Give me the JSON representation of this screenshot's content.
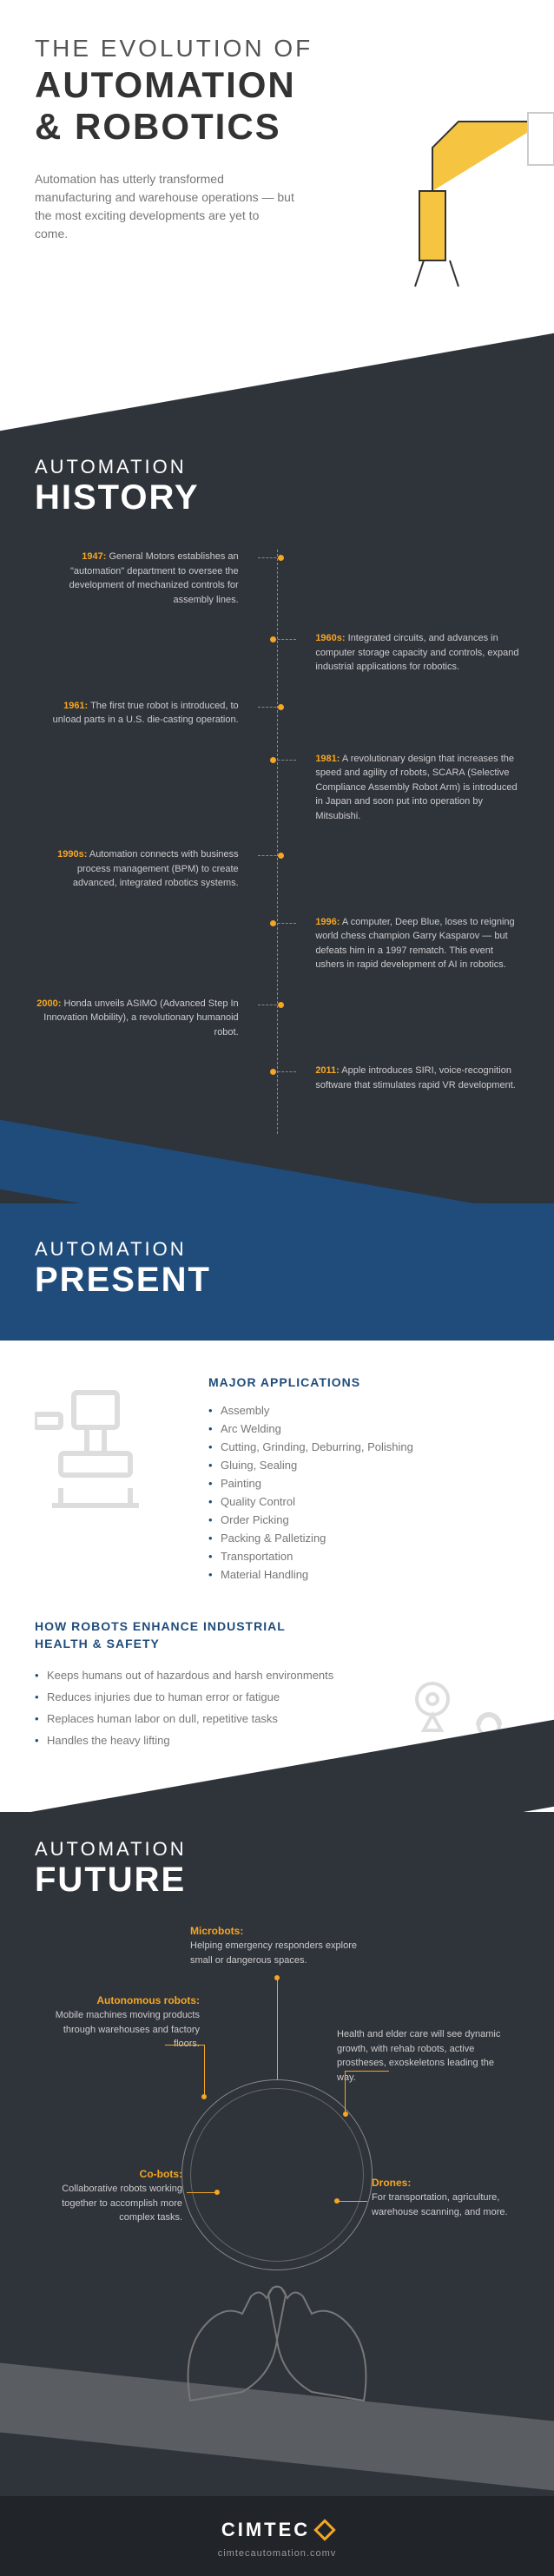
{
  "colors": {
    "accent": "#f5a623",
    "dark": "#2f333a",
    "blue": "#1f4c7a",
    "text": "#777",
    "heading": "#333"
  },
  "header": {
    "line1": "THE EVOLUTION OF",
    "line2": "AUTOMATION",
    "line3": "& ROBOTICS",
    "intro": "Automation has utterly transformed manufacturing and warehouse operations — but the most exciting developments are yet to come."
  },
  "history": {
    "small": "AUTOMATION",
    "big": "HISTORY",
    "items": [
      {
        "side": "left",
        "year": "1947:",
        "text": "General Motors establishes an \"automation\" department to oversee the development of mechanized controls for assembly lines."
      },
      {
        "side": "right",
        "year": "1960s:",
        "text": "Integrated circuits, and advances in computer storage capacity and controls, expand industrial applications for robotics."
      },
      {
        "side": "left",
        "year": "1961:",
        "text": "The first true robot is introduced, to unload parts in a U.S. die-casting operation."
      },
      {
        "side": "right",
        "year": "1981:",
        "text": "A revolutionary design that increases the speed and agility of robots, SCARA (Selective Compliance Assembly Robot Arm) is introduced in Japan and soon put into operation by Mitsubishi."
      },
      {
        "side": "left",
        "year": "1990s:",
        "text": "Automation connects with business process management (BPM) to create advanced, integrated robotics systems."
      },
      {
        "side": "right",
        "year": "1996:",
        "text": "A computer, Deep Blue, loses to reigning world chess champion Garry Kasparov — but defeats him in a 1997 rematch. This event ushers in rapid development of AI in robotics."
      },
      {
        "side": "left",
        "year": "2000:",
        "text": "Honda unveils ASIMO (Advanced Step In Innovation Mobility), a revolutionary humanoid robot."
      },
      {
        "side": "right",
        "year": "2011:",
        "text": "Apple introduces SIRI, voice-recognition software that stimulates rapid VR development."
      }
    ]
  },
  "present": {
    "small": "AUTOMATION",
    "big": "PRESENT",
    "apps_title": "MAJOR APPLICATIONS",
    "apps": [
      "Assembly",
      "Arc Welding",
      "Cutting, Grinding, Deburring, Polishing",
      "Gluing, Sealing",
      "Painting",
      "Quality Control",
      "Order Picking",
      "Packing & Palletizing",
      "Transportation",
      "Material Handling"
    ],
    "safety_title": "HOW ROBOTS ENHANCE INDUSTRIAL HEALTH & SAFETY",
    "safety": [
      "Keeps humans out of hazardous and harsh environments",
      "Reduces injuries due to human error or fatigue",
      "Replaces human labor on dull, repetitive tasks",
      "Handles the heavy lifting"
    ]
  },
  "future": {
    "small": "AUTOMATION",
    "big": "FUTURE",
    "items": {
      "tc": {
        "label": "Microbots:",
        "text": "Helping emergency responders explore small or dangerous spaces."
      },
      "tl": {
        "label": "Autonomous robots:",
        "text": "Mobile machines moving products through warehouses and factory floors."
      },
      "tr": {
        "label": "",
        "text": "Health and elder care will see dynamic growth, with rehab robots, active prostheses, exoskeletons leading the way."
      },
      "bl": {
        "label": "Co-bots:",
        "text": "Collaborative robots working together to accomplish more complex tasks."
      },
      "br": {
        "label": "Drones:",
        "text": "For transportation, agriculture, warehouse scanning, and more."
      }
    }
  },
  "footer": {
    "brand": "CIMTEC",
    "url": "cimtecautomation.comv"
  }
}
